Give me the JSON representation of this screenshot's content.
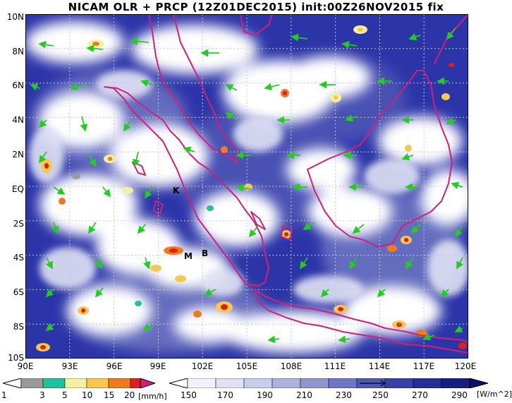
{
  "title": "NICAM OLR + PRCP (12Z01DEC2015) init:00Z26NOV2015 fix",
  "map": {
    "lat_labels": [
      "10N",
      "8N",
      "6N",
      "4N",
      "2N",
      "EQ",
      "2S",
      "4S",
      "6S",
      "8S",
      "10S"
    ],
    "lon_labels": [
      "90E",
      "93E",
      "96E",
      "99E",
      "102E",
      "105E",
      "108E",
      "111E",
      "114E",
      "117E",
      "120E"
    ],
    "place_markers": [
      "K",
      "M",
      "B"
    ],
    "colors": {
      "coast": "#d0207a",
      "wind": "#22cc22",
      "olr_base": "#2c35a8",
      "cloud": "#ffffff"
    }
  },
  "precip_colorbar": {
    "labels": [
      "1",
      "3",
      "5",
      "10",
      "15",
      "20"
    ],
    "unit": "[mm/h]",
    "colors": [
      "#9a9a9a",
      "#1fc09a",
      "#f3f0a0",
      "#f7c850",
      "#ee7a1e",
      "#e01e1e"
    ]
  },
  "olr_colorbar": {
    "labels": [
      "150",
      "170",
      "190",
      "210",
      "230",
      "250",
      "270",
      "290"
    ],
    "unit": "[W/m^2]",
    "colors": [
      "#f2f2fb",
      "#e0e2f4",
      "#c8cbea",
      "#adb1de",
      "#9096d0",
      "#6e76c2",
      "#5057b6",
      "#3840a8",
      "#252d98",
      "#171e80"
    ]
  }
}
